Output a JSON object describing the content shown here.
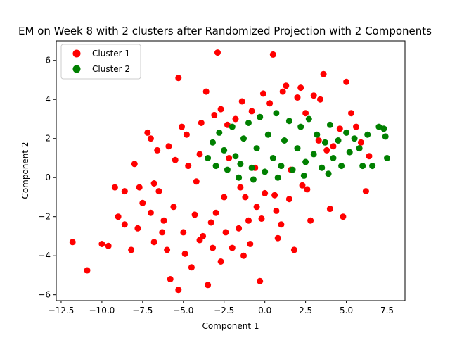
{
  "chart_data": {
    "type": "scatter",
    "title": "EM on Week 8 with 2 clusters after Randomized Projection with 2 Components",
    "xlabel": "Component 1",
    "ylabel": "Component 2",
    "xlim": [
      -12.8,
      8.6
    ],
    "ylim": [
      -6.3,
      7.0
    ],
    "xticks": [
      -12.5,
      -10.0,
      -7.5,
      -5.0,
      -2.5,
      0.0,
      2.5,
      5.0,
      7.5
    ],
    "xtick_labels": [
      "−12.5",
      "−10.0",
      "−7.5",
      "−5.0",
      "−2.5",
      "0.0",
      "2.5",
      "5.0",
      "7.5"
    ],
    "yticks": [
      -6,
      -4,
      -2,
      0,
      2,
      4,
      6
    ],
    "ytick_labels": [
      "−6",
      "−4",
      "−2",
      "0",
      "2",
      "4",
      "6"
    ],
    "grid": false,
    "legend_position": "top-left",
    "series": [
      {
        "name": "Cluster 1",
        "color": "#ff0000",
        "points": [
          [
            -11.8,
            -3.3
          ],
          [
            -10.9,
            -4.75
          ],
          [
            -10.0,
            -3.4
          ],
          [
            -9.6,
            -3.5
          ],
          [
            -9.2,
            -0.5
          ],
          [
            -9.0,
            -2.0
          ],
          [
            -8.6,
            -2.4
          ],
          [
            -8.2,
            -3.7
          ],
          [
            -8.0,
            0.7
          ],
          [
            -7.8,
            -2.6
          ],
          [
            -7.5,
            -1.3
          ],
          [
            -7.2,
            2.3
          ],
          [
            -7.0,
            2.0
          ],
          [
            -6.8,
            -3.3
          ],
          [
            -6.5,
            -0.7
          ],
          [
            -6.3,
            -2.8
          ],
          [
            -6.0,
            -3.7
          ],
          [
            -5.8,
            -5.2
          ],
          [
            -5.6,
            -1.5
          ],
          [
            -5.3,
            5.1
          ],
          [
            -5.3,
            -5.75
          ],
          [
            -5.1,
            2.6
          ],
          [
            -4.9,
            -3.9
          ],
          [
            -4.7,
            0.6
          ],
          [
            -4.5,
            -4.6
          ],
          [
            -4.3,
            -1.9
          ],
          [
            -4.0,
            1.2
          ],
          [
            -3.8,
            -3.0
          ],
          [
            -3.6,
            4.4
          ],
          [
            -3.5,
            -5.5
          ],
          [
            -3.3,
            -2.3
          ],
          [
            -3.1,
            3.2
          ],
          [
            -2.9,
            6.4
          ],
          [
            -2.7,
            -4.3
          ],
          [
            -2.5,
            -1.0
          ],
          [
            -2.3,
            2.7
          ],
          [
            -2.0,
            -3.6
          ],
          [
            -1.8,
            3.0
          ],
          [
            -1.5,
            -0.5
          ],
          [
            -1.3,
            -4.0
          ],
          [
            -1.0,
            -2.2
          ],
          [
            -0.8,
            3.4
          ],
          [
            -0.5,
            -1.5
          ],
          [
            -0.3,
            -5.3
          ],
          [
            0.0,
            -0.8
          ],
          [
            0.3,
            3.8
          ],
          [
            0.5,
            6.3
          ],
          [
            0.8,
            -3.1
          ],
          [
            1.0,
            -2.4
          ],
          [
            1.3,
            4.7
          ],
          [
            1.5,
            -1.1
          ],
          [
            1.8,
            -3.7
          ],
          [
            2.0,
            4.1
          ],
          [
            2.3,
            -0.4
          ],
          [
            2.5,
            3.3
          ],
          [
            2.8,
            -2.2
          ],
          [
            3.0,
            4.2
          ],
          [
            3.3,
            1.9
          ],
          [
            3.6,
            5.3
          ],
          [
            3.8,
            1.4
          ],
          [
            4.0,
            -1.6
          ],
          [
            4.2,
            1.6
          ],
          [
            4.6,
            2.5
          ],
          [
            4.8,
            -2.0
          ],
          [
            5.0,
            4.9
          ],
          [
            5.3,
            3.3
          ],
          [
            5.6,
            2.6
          ],
          [
            5.9,
            1.8
          ],
          [
            6.2,
            -0.7
          ],
          [
            6.4,
            1.1
          ],
          [
            -6.8,
            -0.3
          ],
          [
            -5.5,
            0.9
          ],
          [
            -4.2,
            -0.2
          ],
          [
            -3.0,
            -1.8
          ],
          [
            -2.2,
            1.0
          ],
          [
            -1.2,
            -1.0
          ],
          [
            -0.6,
            0.5
          ],
          [
            0.6,
            -0.9
          ],
          [
            1.6,
            0.4
          ],
          [
            2.6,
            -0.6
          ],
          [
            -7.0,
            -1.8
          ],
          [
            -6.2,
            -2.2
          ],
          [
            -5.0,
            -2.8
          ],
          [
            -4.0,
            -3.2
          ],
          [
            -3.2,
            -3.6
          ],
          [
            -2.4,
            -2.8
          ],
          [
            -1.6,
            -2.6
          ],
          [
            -0.9,
            -3.4
          ],
          [
            -0.2,
            -2.1
          ],
          [
            0.7,
            -1.7
          ],
          [
            -8.6,
            -0.7
          ],
          [
            -7.7,
            -0.5
          ],
          [
            -6.6,
            1.4
          ],
          [
            -5.9,
            1.6
          ],
          [
            -4.8,
            2.2
          ],
          [
            -3.9,
            2.8
          ],
          [
            -2.7,
            3.5
          ],
          [
            -1.4,
            3.9
          ],
          [
            -0.1,
            4.3
          ],
          [
            1.1,
            4.4
          ],
          [
            2.2,
            4.6
          ],
          [
            3.4,
            4.0
          ]
        ]
      },
      {
        "name": "Cluster 2",
        "color": "#008000",
        "points": [
          [
            -3.5,
            1.0
          ],
          [
            -3.2,
            1.8
          ],
          [
            -3.0,
            0.6
          ],
          [
            -2.8,
            2.3
          ],
          [
            -2.5,
            1.4
          ],
          [
            -2.3,
            0.4
          ],
          [
            -2.0,
            2.6
          ],
          [
            -1.8,
            1.1
          ],
          [
            -1.5,
            0.7
          ],
          [
            -1.3,
            2.0
          ],
          [
            -1.0,
            2.8
          ],
          [
            -0.8,
            0.5
          ],
          [
            -0.5,
            1.5
          ],
          [
            -0.3,
            3.1
          ],
          [
            0.0,
            0.3
          ],
          [
            0.2,
            2.2
          ],
          [
            0.5,
            1.0
          ],
          [
            0.7,
            3.3
          ],
          [
            1.0,
            0.6
          ],
          [
            1.2,
            1.9
          ],
          [
            1.5,
            2.9
          ],
          [
            1.7,
            0.4
          ],
          [
            2.0,
            1.5
          ],
          [
            2.2,
            2.6
          ],
          [
            2.5,
            0.8
          ],
          [
            2.7,
            3.0
          ],
          [
            3.0,
            1.2
          ],
          [
            3.2,
            2.2
          ],
          [
            3.5,
            0.5
          ],
          [
            3.7,
            1.8
          ],
          [
            4.0,
            2.7
          ],
          [
            4.2,
            1.0
          ],
          [
            4.5,
            1.9
          ],
          [
            4.7,
            0.6
          ],
          [
            5.0,
            2.3
          ],
          [
            5.2,
            1.3
          ],
          [
            5.5,
            2.0
          ],
          [
            5.8,
            1.5
          ],
          [
            6.0,
            0.6
          ],
          [
            6.3,
            2.2
          ],
          [
            6.6,
            0.6
          ],
          [
            7.0,
            2.6
          ],
          [
            7.3,
            2.5
          ],
          [
            7.4,
            2.1
          ],
          [
            7.5,
            1.0
          ],
          [
            -1.6,
            0.0
          ],
          [
            -0.7,
            -0.1
          ],
          [
            0.8,
            0.0
          ],
          [
            2.4,
            0.1
          ],
          [
            3.9,
            0.2
          ]
        ]
      }
    ]
  }
}
